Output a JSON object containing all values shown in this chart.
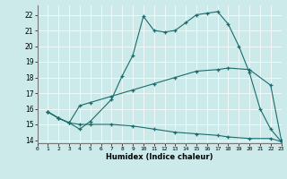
{
  "xlabel": "Humidex (Indice chaleur)",
  "bg_color": "#cceaea",
  "line_color": "#1a6b6b",
  "grid_color": "#ffffff",
  "xlim": [
    0,
    23
  ],
  "ylim": [
    13.8,
    22.6
  ],
  "xticks": [
    0,
    1,
    2,
    3,
    4,
    5,
    6,
    7,
    8,
    9,
    10,
    11,
    12,
    13,
    14,
    15,
    16,
    17,
    18,
    19,
    20,
    21,
    22,
    23
  ],
  "yticks": [
    14,
    15,
    16,
    17,
    18,
    19,
    20,
    21,
    22
  ],
  "line1_x": [
    1,
    2,
    3,
    4,
    5,
    7,
    8,
    9,
    10,
    11,
    12,
    13,
    14,
    15,
    16,
    17,
    18,
    19,
    20,
    21,
    22,
    23
  ],
  "line1_y": [
    15.8,
    15.4,
    15.1,
    14.7,
    15.2,
    16.6,
    18.1,
    19.4,
    21.9,
    21.0,
    20.9,
    21.0,
    21.5,
    22.0,
    22.1,
    22.2,
    21.4,
    20.0,
    18.3,
    16.0,
    14.7,
    13.9
  ],
  "line2_x": [
    1,
    2,
    3,
    4,
    5,
    7,
    9,
    11,
    13,
    15,
    17,
    18,
    20,
    22,
    23
  ],
  "line2_y": [
    15.8,
    15.4,
    15.1,
    16.2,
    16.4,
    16.8,
    17.2,
    17.6,
    18.0,
    18.4,
    18.5,
    18.6,
    18.5,
    17.5,
    14.0
  ],
  "line3_x": [
    1,
    2,
    3,
    4,
    5,
    7,
    9,
    11,
    13,
    15,
    17,
    18,
    20,
    22,
    23
  ],
  "line3_y": [
    15.8,
    15.4,
    15.1,
    15.0,
    15.0,
    15.0,
    14.9,
    14.7,
    14.5,
    14.4,
    14.3,
    14.2,
    14.1,
    14.1,
    13.9
  ]
}
